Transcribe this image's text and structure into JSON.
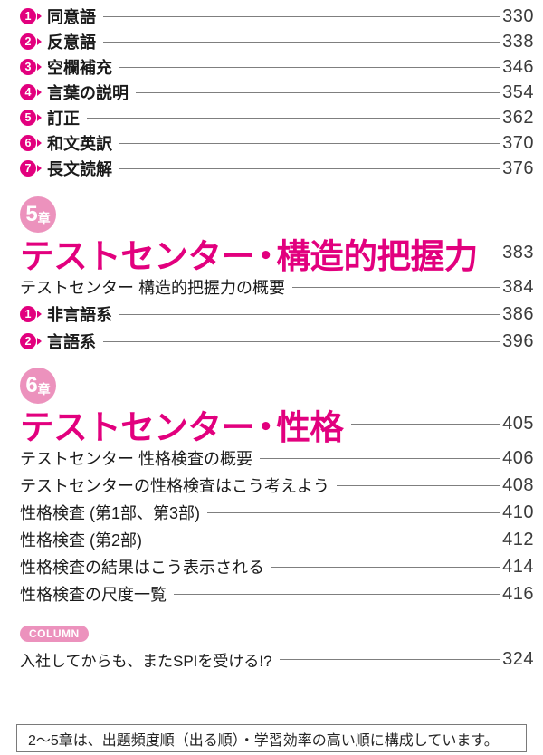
{
  "colors": {
    "magenta": "#e2007e",
    "badge_pink": "#ec92bd",
    "leader_gray": "#7f7f7f"
  },
  "toc": {
    "intro_items": [
      {
        "num": "1",
        "label": "同意語",
        "page": "330"
      },
      {
        "num": "2",
        "label": "反意語",
        "page": "338"
      },
      {
        "num": "3",
        "label": "空欄補充",
        "page": "346"
      },
      {
        "num": "4",
        "label": "言葉の説明",
        "page": "354"
      },
      {
        "num": "5",
        "label": "訂正",
        "page": "362"
      },
      {
        "num": "6",
        "label": "和文英訳",
        "page": "370"
      },
      {
        "num": "7",
        "label": "長文読解",
        "page": "376"
      }
    ],
    "chapters": [
      {
        "badge_num": "5",
        "badge_suffix": "章",
        "title": "テストセンター・構造的把握力",
        "page": "383",
        "items": [
          {
            "label": "テストセンター 構造的把握力の概要",
            "page": "384"
          },
          {
            "num": "1",
            "label": "非言語系",
            "page": "386"
          },
          {
            "num": "2",
            "label": "言語系",
            "page": "396"
          }
        ]
      },
      {
        "badge_num": "6",
        "badge_suffix": "章",
        "title": "テストセンター・性格",
        "page": "405",
        "items": [
          {
            "label": "テストセンター 性格検査の概要",
            "page": "406"
          },
          {
            "label": "テストセンターの性格検査はこう考えよう",
            "page": "408"
          },
          {
            "label": "性格検査 (第1部、第3部)",
            "page": "410"
          },
          {
            "label": "性格検査 (第2部)",
            "page": "412"
          },
          {
            "label": "性格検査の結果はこう表示される",
            "page": "414"
          },
          {
            "label": "性格検査の尺度一覧",
            "page": "416"
          }
        ]
      }
    ],
    "column": {
      "badge": "COLUMN",
      "label": "入社してからも、またSPIを受ける!?",
      "page": "324"
    },
    "footer": "2～5章は、出題頻度順（出る順）・学習効率の高い順に構成しています。"
  }
}
